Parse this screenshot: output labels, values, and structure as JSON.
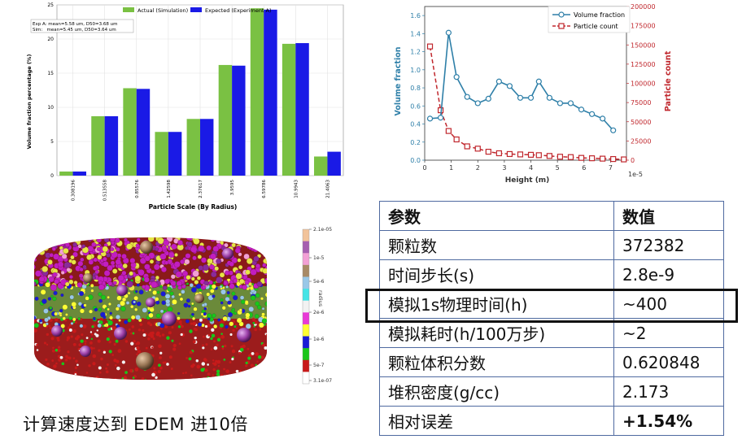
{
  "chart_data": [
    {
      "type": "bar",
      "title": "",
      "xlabel": "Particle Scale (By Radius)",
      "ylabel": "Volume fraction percentage (%)",
      "ylim": [
        0,
        25
      ],
      "yticks": [
        0,
        5,
        10,
        15,
        20,
        25
      ],
      "legend_position": "top-center",
      "annotation_lines": [
        "Exp A: mean=5.58 um, D50=3.68 um",
        "Sim:   mean=5.45 um, D50=3.64 um"
      ],
      "categories": [
        "0.308196",
        "0.513558",
        "0.85576",
        "1.42598",
        "2.37617",
        "3.9595",
        "6.59786",
        "10.9943",
        "21.4063"
      ],
      "series": [
        {
          "name": "Actual (Simulation)",
          "color": "#7ac143",
          "values": [
            0.6,
            8.7,
            12.8,
            6.4,
            8.3,
            16.2,
            24.5,
            19.3,
            2.8
          ]
        },
        {
          "name": "Expected (Experiment A)",
          "color": "#1a1ae6",
          "values": [
            0.6,
            8.7,
            12.7,
            6.4,
            8.3,
            16.1,
            24.3,
            19.4,
            3.5
          ]
        }
      ],
      "grid": true
    },
    {
      "type": "line",
      "xlabel": "Height (m)",
      "x_scale_label": "1e-5",
      "ylabel_left": "Volume fraction",
      "ylabel_right": "Particle count",
      "xlim": [
        0,
        7.6
      ],
      "ylim_left": [
        0,
        1.7
      ],
      "ylim_right": [
        0,
        200000
      ],
      "xticks": [
        0,
        1,
        2,
        3,
        4,
        5,
        6,
        7
      ],
      "yticks_left": [
        "0.0",
        "0.2",
        "0.4",
        "0.6",
        "0.8",
        "1.0",
        "1.2",
        "1.4",
        "1.6"
      ],
      "yticks_right": [
        "0",
        "25000",
        "50000",
        "75000",
        "100000",
        "125000",
        "150000",
        "175000",
        "200000"
      ],
      "legend_position": "top-right",
      "series": [
        {
          "name": "Volume fraction",
          "axis": "left",
          "color": "#2e7fa8",
          "x": [
            0.2,
            0.6,
            0.9,
            1.2,
            1.6,
            2.0,
            2.4,
            2.8,
            3.2,
            3.6,
            4.0,
            4.3,
            4.7,
            5.1,
            5.5,
            5.9,
            6.3,
            6.7,
            7.1
          ],
          "y": [
            0.46,
            0.47,
            1.41,
            0.92,
            0.7,
            0.63,
            0.68,
            0.87,
            0.82,
            0.69,
            0.69,
            0.87,
            0.69,
            0.63,
            0.63,
            0.56,
            0.51,
            0.46,
            0.33
          ]
        },
        {
          "name": "Particle count",
          "axis": "right",
          "color": "#c0272d",
          "x": [
            0.2,
            0.6,
            0.9,
            1.2,
            1.6,
            2.0,
            2.4,
            2.8,
            3.2,
            3.6,
            4.0,
            4.3,
            4.7,
            5.1,
            5.5,
            5.9,
            6.3,
            6.7,
            7.1,
            7.5
          ],
          "y": [
            148000,
            65000,
            38000,
            27000,
            18000,
            15000,
            11000,
            9000,
            8000,
            7500,
            7000,
            6500,
            5500,
            4500,
            4000,
            3000,
            2500,
            2000,
            1500,
            1000
          ]
        }
      ],
      "grid": false
    }
  ],
  "colorbar": {
    "label": "radius",
    "ticks": [
      "2.1e-05",
      "1e-5",
      "5e-6",
      "2e-6",
      "1e-6",
      "5e-7",
      "3.1e-07"
    ],
    "colors": [
      "#f2c39a",
      "#a65fb0",
      "#f2a0d5",
      "#a88a66",
      "#99c8e8",
      "#46e4e6",
      "#f2f2f2",
      "#e83ad6",
      "#ffff33",
      "#1a1ad6",
      "#1ac61a",
      "#c81a1a",
      "#ffffff"
    ]
  },
  "caption": "计算速度达到 EDEM 进10倍",
  "table": {
    "headers": [
      "参数",
      "数值"
    ],
    "rows": [
      {
        "name": "颗粒数",
        "value": "372382"
      },
      {
        "name": "时间步长(s)",
        "value": "2.8e-9"
      },
      {
        "name": "模拟1s物理时间(h)",
        "value": "~400"
      },
      {
        "name": "模拟耗时(h/100万步)",
        "value": "~2"
      },
      {
        "name": "颗粒体积分数",
        "value": "0.620848"
      },
      {
        "name": "堆积密度(g/cc)",
        "value": "2.173"
      },
      {
        "name": "相对误差",
        "value": "+1.54%"
      }
    ]
  }
}
